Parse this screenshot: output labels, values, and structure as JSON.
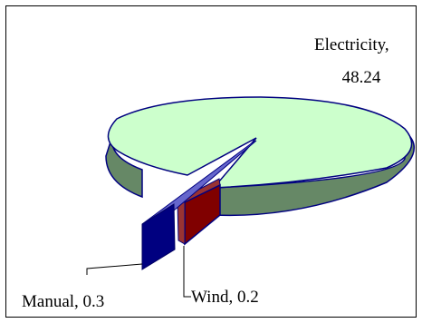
{
  "chart_data": {
    "type": "pie",
    "style": "3d-exploded",
    "title": "",
    "legend": "none",
    "slices": [
      {
        "name": "Electricity",
        "value": 48.24,
        "label": "Electricity,",
        "value_label": "48.24",
        "color": "#ccffcc",
        "side_color": "#668866"
      },
      {
        "name": "Manual",
        "value": 0.3,
        "label": "Manual, 0.3",
        "color": "#000080",
        "side_color": "#000080"
      },
      {
        "name": "Wind",
        "value": 0.2,
        "label": "Wind, 0.2",
        "color": "#993333",
        "side_color": "#800000"
      }
    ]
  }
}
